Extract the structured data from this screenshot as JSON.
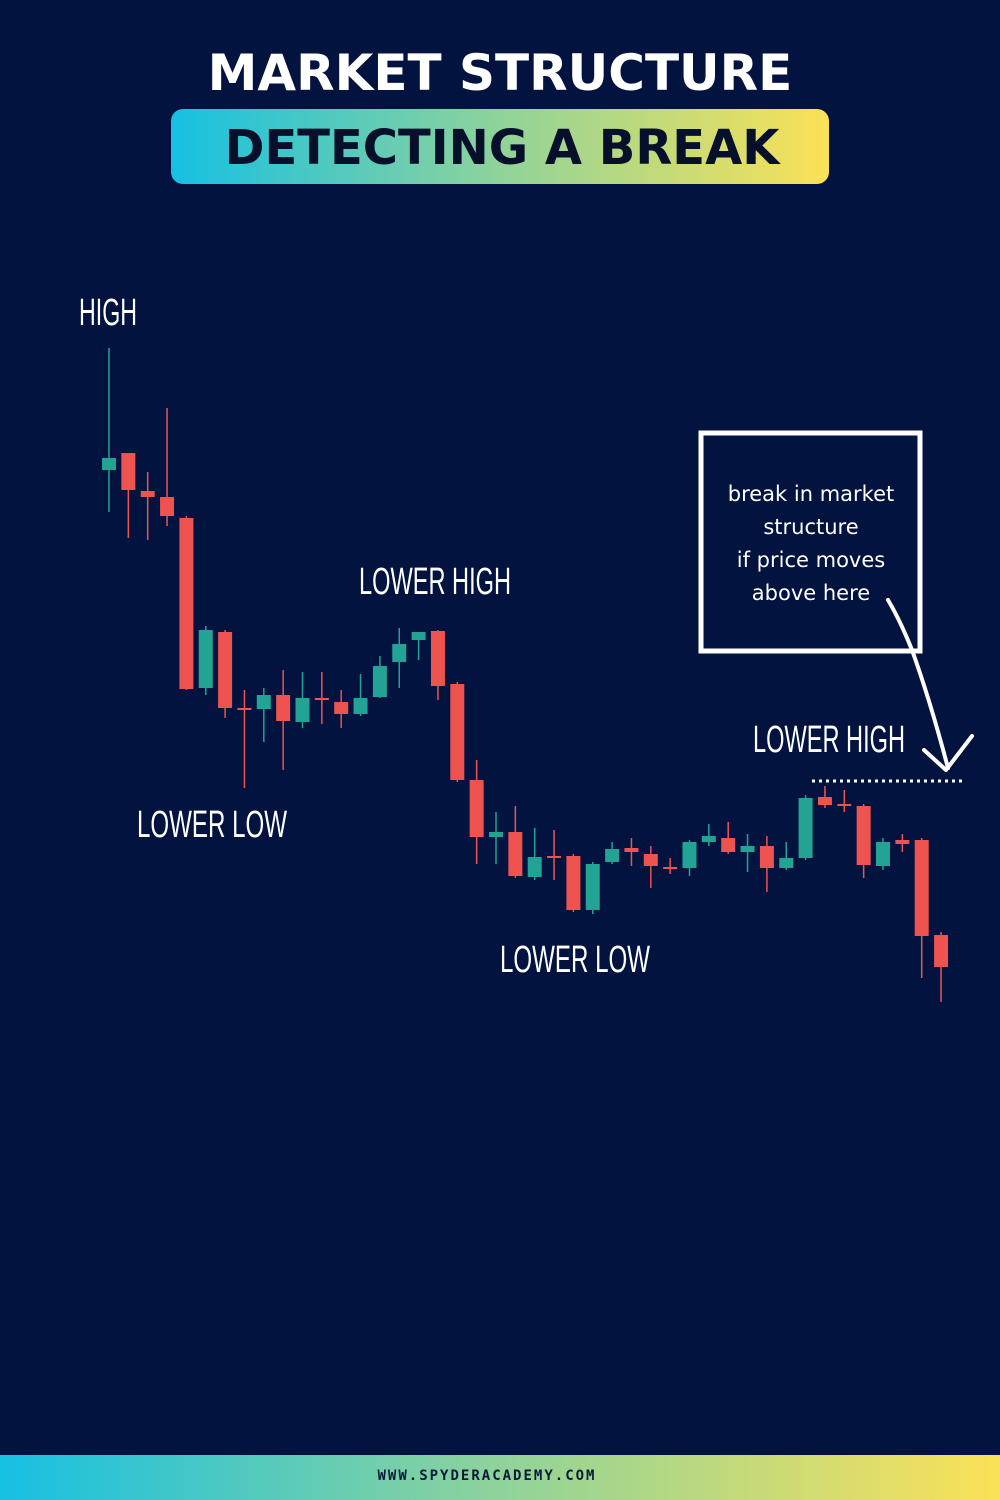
{
  "chart_data": {
    "type": "candlestick",
    "title": "MARKET STRUCTURE",
    "subtitle": "DETECTING A BREAK",
    "annotations": [
      "HIGH",
      "LOWER HIGH",
      "LOWER LOW",
      "LOWER LOW",
      "LOWER HIGH"
    ],
    "note_lines": [
      "break in market",
      "structure",
      "if price moves",
      "above here"
    ],
    "footer": "WWW.SPYDERACADEMY.COM",
    "up_color": "#22a393",
    "down_color": "#ef5350",
    "ylim": [
      0,
      750
    ],
    "open": [
      580,
      597,
      559,
      553,
      532,
      362,
      418,
      342,
      341,
      355,
      328,
      352,
      348,
      336,
      353,
      388,
      410,
      419,
      366,
      270,
      213,
      218,
      173,
      194,
      194,
      140,
      188,
      202,
      196,
      183,
      182,
      208,
      212,
      198,
      204,
      182,
      192,
      253,
      246,
      244,
      184,
      210,
      210,
      115
    ],
    "high": [
      702,
      597,
      578,
      642,
      534,
      424,
      420,
      360,
      362,
      380,
      378,
      378,
      360,
      376,
      394,
      422,
      418,
      420,
      368,
      290,
      238,
      244,
      222,
      220,
      196,
      188,
      208,
      212,
      204,
      192,
      210,
      226,
      228,
      216,
      214,
      208,
      255,
      264,
      260,
      246,
      212,
      216,
      212,
      118
    ],
    "low": [
      538,
      512,
      510,
      524,
      360,
      355,
      332,
      262,
      308,
      280,
      322,
      326,
      322,
      334,
      352,
      362,
      390,
      350,
      268,
      186,
      186,
      172,
      170,
      170,
      138,
      136,
      186,
      184,
      162,
      176,
      174,
      204,
      196,
      178,
      158,
      180,
      190,
      242,
      238,
      172,
      180,
      198,
      72,
      48
    ],
    "close": [
      592,
      560,
      553,
      534,
      361,
      420,
      342,
      340,
      355,
      329,
      352,
      350,
      336,
      352,
      384,
      406,
      418,
      364,
      270,
      213,
      218,
      174,
      193,
      192,
      140,
      186,
      201,
      198,
      184,
      181,
      208,
      214,
      198,
      204,
      182,
      192,
      252,
      245,
      244,
      185,
      208,
      206,
      114,
      83
    ]
  }
}
